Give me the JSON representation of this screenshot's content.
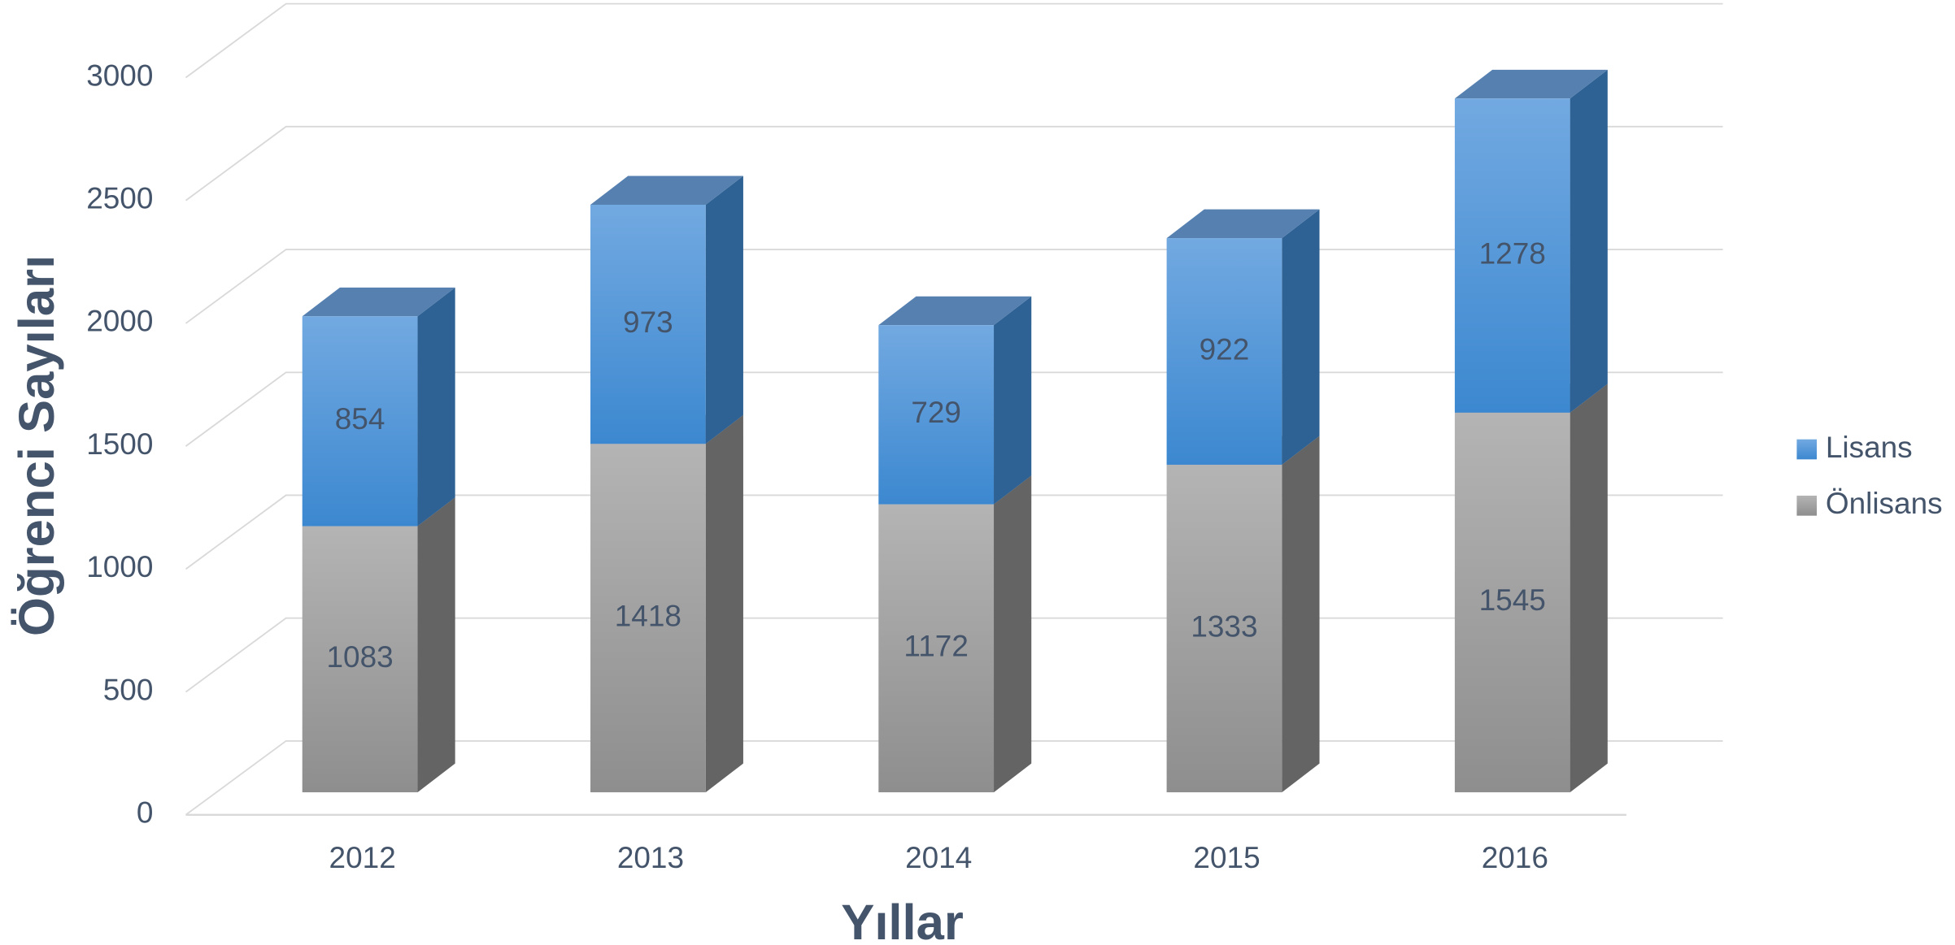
{
  "chart_data": {
    "type": "bar3d_stacked",
    "categories": [
      "2012",
      "2013",
      "2014",
      "2015",
      "2016"
    ],
    "series": [
      {
        "name": "Önlisans",
        "color": "#a0a0a0",
        "values": [
          1083,
          1418,
          1172,
          1333,
          1545
        ]
      },
      {
        "name": "Lisans",
        "color": "#4a90d9",
        "values": [
          854,
          973,
          729,
          922,
          1278
        ]
      }
    ],
    "ylim": [
      0,
      3000
    ],
    "yticks": [
      0,
      500,
      1000,
      1500,
      2000,
      2500,
      3000
    ],
    "xlabel": "Yıllar",
    "ylabel": "Öğrenci Sayıları",
    "grid": true,
    "legend": "right"
  }
}
